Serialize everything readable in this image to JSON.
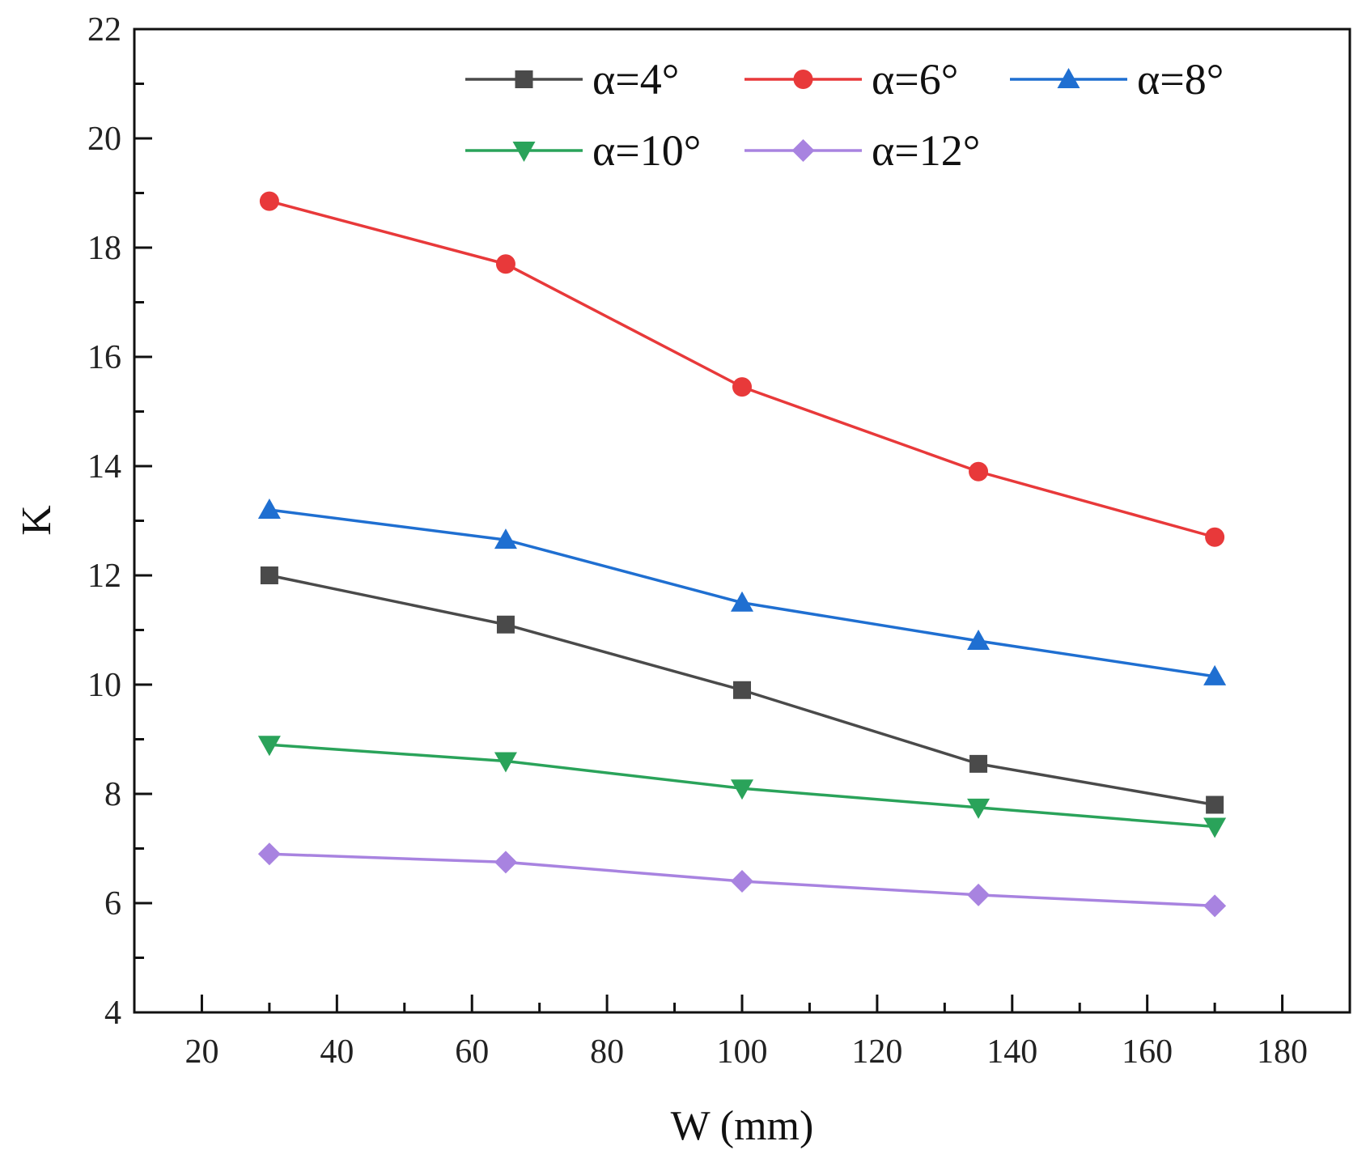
{
  "chart_data": {
    "type": "line",
    "xlabel": "W (mm)",
    "ylabel": "K",
    "xlim": [
      10,
      190
    ],
    "ylim": [
      4,
      22
    ],
    "xticks": [
      20,
      40,
      60,
      80,
      100,
      120,
      140,
      160,
      180
    ],
    "yticks": [
      4,
      6,
      8,
      10,
      12,
      14,
      16,
      18,
      20,
      22
    ],
    "grid": false,
    "legend_position": "top-right",
    "x": [
      30,
      65,
      100,
      135,
      170
    ],
    "series": [
      {
        "name": "α=4°",
        "color": "#4a4a4a",
        "marker": "square",
        "values": [
          12.0,
          11.1,
          9.9,
          8.55,
          7.8
        ]
      },
      {
        "name": "α=6°",
        "color": "#e8393a",
        "marker": "circle",
        "values": [
          18.85,
          17.7,
          15.45,
          13.9,
          12.7
        ]
      },
      {
        "name": "α=8°",
        "color": "#1f6fd1",
        "marker": "triangle-up",
        "values": [
          13.2,
          12.65,
          11.5,
          10.8,
          10.15
        ]
      },
      {
        "name": "α=10°",
        "color": "#2aa35a",
        "marker": "triangle-down",
        "values": [
          8.9,
          8.6,
          8.1,
          7.75,
          7.4
        ]
      },
      {
        "name": "α=12°",
        "color": "#a883e0",
        "marker": "diamond",
        "values": [
          6.9,
          6.75,
          6.4,
          6.15,
          5.95
        ]
      }
    ]
  }
}
